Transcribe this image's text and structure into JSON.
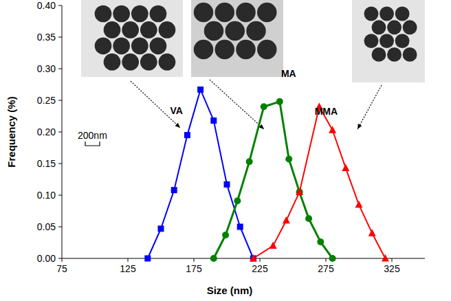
{
  "chart_data": {
    "type": "line",
    "x_label": "Size (nm)",
    "y_label": "Frequency (%)",
    "annotations": [
      "200nm"
    ],
    "xlim": [
      75,
      350
    ],
    "xticks": [
      75,
      125,
      175,
      225,
      275,
      325
    ],
    "ylim": [
      0,
      0.4
    ],
    "yticks": [
      {
        "value": 0,
        "label": "0.00"
      },
      0.05,
      {
        "value": 0.1,
        "label": "0.10"
      },
      0.15,
      {
        "value": 0.2,
        "label": "0.20"
      },
      0.25,
      {
        "value": 0.3,
        "label": "0.30"
      },
      0.35,
      {
        "value": 0.4,
        "label": "0.40"
      }
    ],
    "grid": false,
    "series": [
      {
        "name": "VA",
        "color": "#0000ff",
        "marker": "square",
        "x": [
          140,
          150,
          160,
          170,
          180,
          190,
          200,
          210,
          220
        ],
        "values": [
          0,
          0.047,
          0.108,
          0.195,
          0.267,
          0.218,
          0.117,
          0.05,
          0
        ]
      },
      {
        "name": "MA",
        "color": "#008000",
        "marker": "circle",
        "x": [
          190,
          199,
          208,
          217,
          228,
          240,
          247,
          255,
          262,
          271,
          280
        ],
        "values": [
          0,
          0.037,
          0.091,
          0.153,
          0.24,
          0.248,
          0.157,
          0.105,
          0.063,
          0.026,
          0
        ]
      },
      {
        "name": "MMA",
        "color": "#ff0000",
        "marker": "triangle",
        "x": [
          220,
          235,
          245,
          255,
          270,
          280,
          290,
          300,
          310,
          320
        ],
        "values": [
          0,
          0.02,
          0.06,
          0.105,
          0.24,
          0.203,
          0.143,
          0.085,
          0.04,
          0
        ]
      }
    ]
  }
}
